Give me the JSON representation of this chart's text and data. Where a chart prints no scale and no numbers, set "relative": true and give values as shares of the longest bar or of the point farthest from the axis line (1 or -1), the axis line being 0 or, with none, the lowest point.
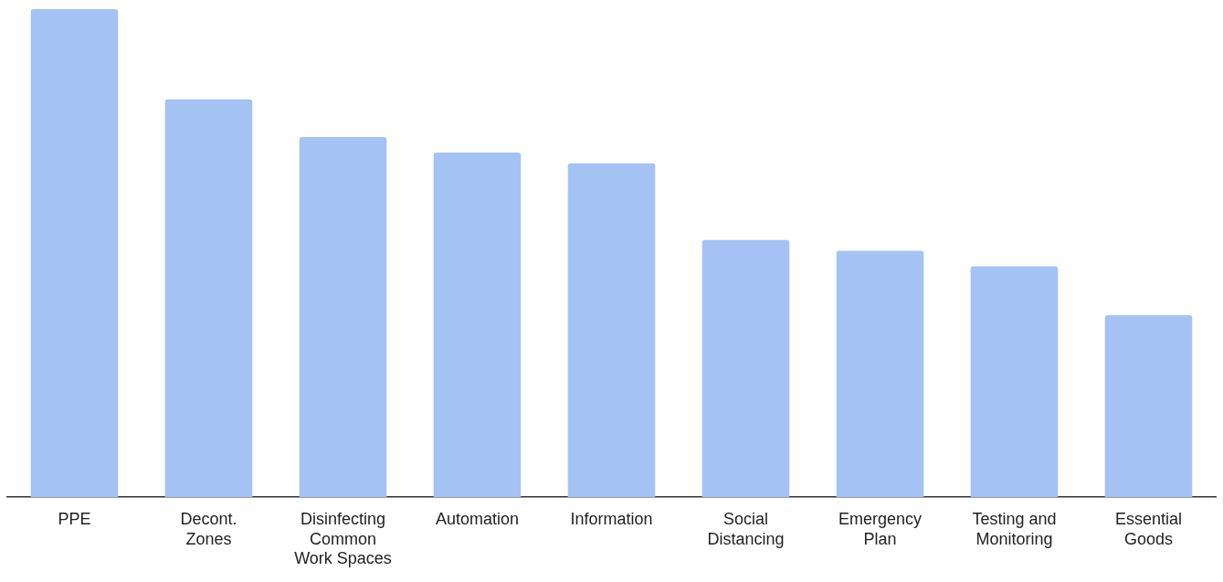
{
  "chart_data": {
    "type": "bar",
    "relative": true,
    "categories": [
      "PPE",
      "Decont. Zones",
      "Disinfecting Common Work Spaces",
      "Automation",
      "Information",
      "Social Distancing",
      "Emergency Plan",
      "Testing and Monitoring",
      "Essential Goods"
    ],
    "values": [
      1,
      0.815,
      0.738,
      0.706,
      0.684,
      0.527,
      0.505,
      0.473,
      0.373
    ],
    "color": "#a4c2f4"
  }
}
